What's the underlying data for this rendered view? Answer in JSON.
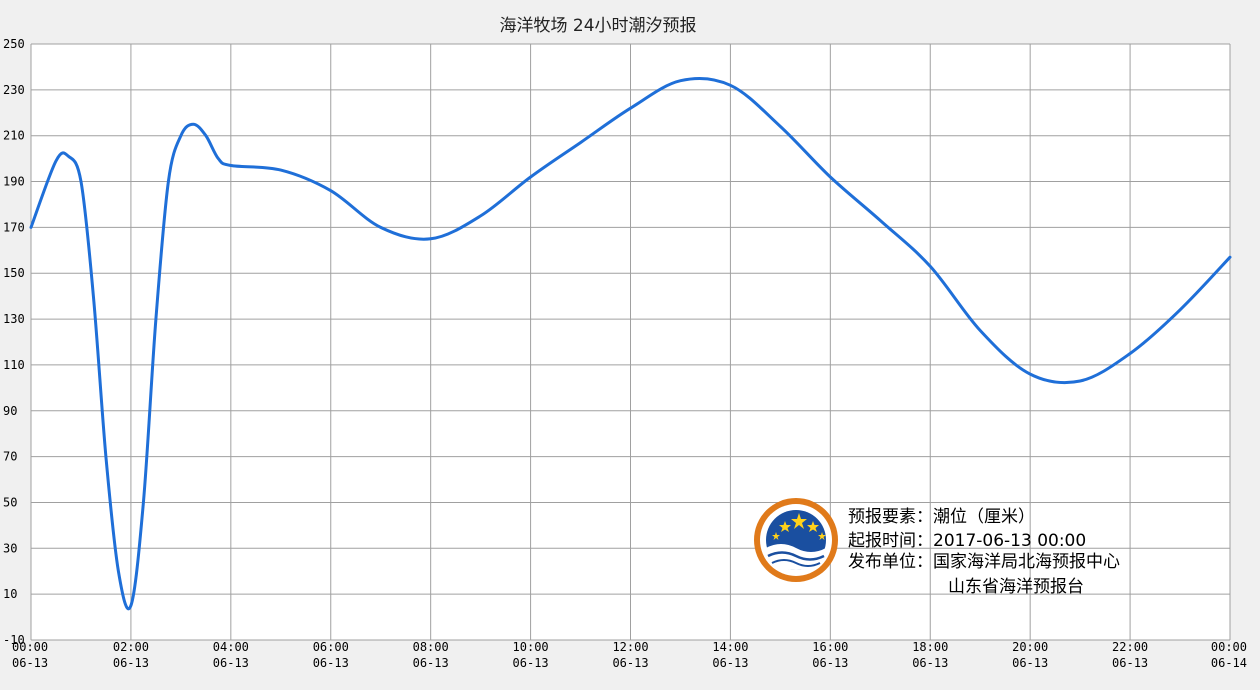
{
  "colors": {
    "background": "#f0f0f0",
    "plot_background": "#ffffff",
    "grid": "#a0a0a0",
    "line": "#1f6fd8",
    "logo_ring": "#e07a1a",
    "logo_blue": "#1a4fa0"
  },
  "logo": {
    "icon": "ocean-forecast-logo-icon"
  },
  "info": {
    "element_label": "预报要素：潮位（厘米）",
    "issue_time_label": "起报时间：2017-06-13 00:00",
    "publisher_label": "发布单位：国家海洋局北海预报中心",
    "publisher_line2": "山东省海洋预报台"
  },
  "chart_data": {
    "type": "line",
    "title": "海洋牧场 24小时潮汐预报",
    "xlabel": "",
    "ylabel": "",
    "ylim": [
      -10,
      250
    ],
    "xlim": [
      0,
      24
    ],
    "grid": true,
    "yticks": [
      -10,
      10,
      30,
      50,
      70,
      90,
      110,
      130,
      150,
      170,
      190,
      210,
      230,
      250
    ],
    "xticks": [
      {
        "time": "00:00",
        "date": "06-13"
      },
      {
        "time": "02:00",
        "date": "06-13"
      },
      {
        "time": "04:00",
        "date": "06-13"
      },
      {
        "time": "06:00",
        "date": "06-13"
      },
      {
        "time": "08:00",
        "date": "06-13"
      },
      {
        "time": "10:00",
        "date": "06-13"
      },
      {
        "time": "12:00",
        "date": "06-13"
      },
      {
        "time": "14:00",
        "date": "06-13"
      },
      {
        "time": "16:00",
        "date": "06-13"
      },
      {
        "time": "18:00",
        "date": "06-13"
      },
      {
        "time": "20:00",
        "date": "06-13"
      },
      {
        "time": "22:00",
        "date": "06-13"
      },
      {
        "time": "00:00",
        "date": "06-14"
      }
    ],
    "series": [
      {
        "x": [
          "00:00",
          "00:30",
          "00:45",
          "01:00",
          "01:15",
          "01:30",
          "01:45",
          "02:00",
          "02:15",
          "02:30",
          "02:45",
          "03:00",
          "03:15",
          "03:30",
          "03:45",
          "04:00",
          "05:00",
          "06:00",
          "07:00",
          "08:00",
          "09:00",
          "10:00",
          "11:00",
          "12:00",
          "13:00",
          "14:00",
          "15:00",
          "16:00",
          "17:00",
          "18:00",
          "19:00",
          "20:00",
          "21:00",
          "22:00",
          "23:00",
          "24:00"
        ],
        "values": [
          170,
          199,
          201,
          190,
          140,
          70,
          20,
          5,
          50,
          130,
          190,
          210,
          215,
          210,
          200,
          197,
          195,
          186,
          170,
          165,
          175,
          192,
          207,
          222,
          234,
          232,
          214,
          192,
          173,
          153,
          125,
          106,
          103,
          115,
          134,
          157
        ]
      }
    ]
  }
}
